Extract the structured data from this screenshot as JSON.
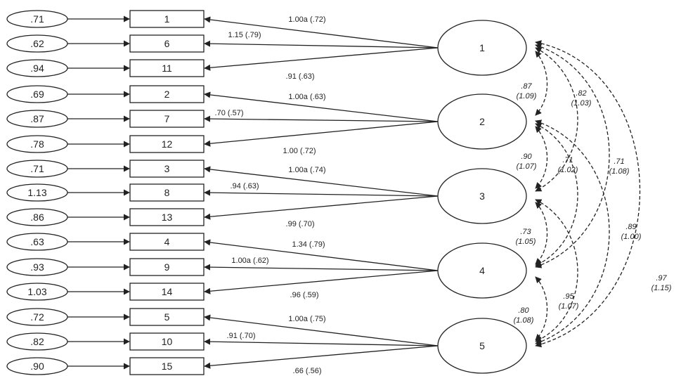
{
  "errors": [
    ".71",
    ".62",
    ".94",
    ".69",
    ".87",
    ".78",
    ".71",
    "1.13",
    ".86",
    ".63",
    ".93",
    "1.03",
    ".72",
    ".82",
    ".90"
  ],
  "items": [
    "1",
    "6",
    "11",
    "2",
    "7",
    "12",
    "3",
    "8",
    "13",
    "4",
    "9",
    "14",
    "5",
    "10",
    "15"
  ],
  "factors": [
    "1",
    "2",
    "3",
    "4",
    "5"
  ],
  "loadings": [
    "1.00a (.72)",
    "1.15 (.79)",
    ".91 (.63)",
    "1.00a (.63)",
    ".70 (.57)",
    "1.00 (.72)",
    "1.00a (.74)",
    ".94 (.63)",
    ".99 (.70)",
    "1.34 (.79)",
    "1.00a (.62)",
    ".96 (.59)",
    "1.00a (.75)",
    ".91 (.70)",
    ".66 (.56)"
  ],
  "covariances": [
    {
      "from": "1",
      "to": "2",
      "std": ".87",
      "unstd": "(1.09)"
    },
    {
      "from": "1",
      "to": "3",
      "std": ".82",
      "unstd": "(1.03)"
    },
    {
      "from": "1",
      "to": "4",
      "std": ".71",
      "unstd": "(1.08)"
    },
    {
      "from": "1",
      "to": "5",
      "std": ".97",
      "unstd": "(1.15)"
    },
    {
      "from": "2",
      "to": "3",
      "std": ".90",
      "unstd": "(1.07)"
    },
    {
      "from": "2",
      "to": "4",
      "std": ".71",
      "unstd": "(1.02)"
    },
    {
      "from": "2",
      "to": "5",
      "std": ".89",
      "unstd": "(1.00)"
    },
    {
      "from": "3",
      "to": "4",
      "std": ".73",
      "unstd": "(1.05)"
    },
    {
      "from": "3",
      "to": "5",
      "std": ".95",
      "unstd": "(1.07)"
    },
    {
      "from": "4",
      "to": "5",
      "std": ".80",
      "unstd": "(1.08)"
    }
  ]
}
